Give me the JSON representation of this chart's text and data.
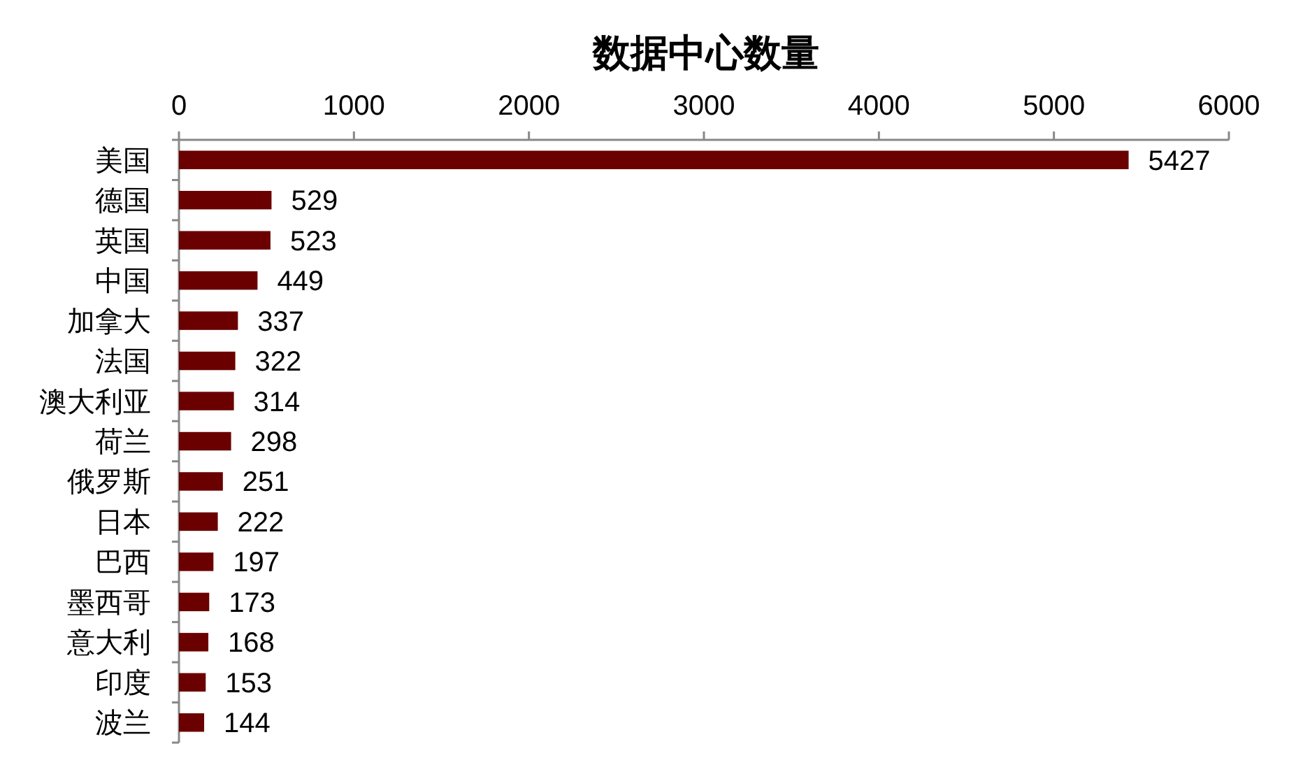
{
  "chart_data": {
    "type": "bar",
    "orientation": "horizontal",
    "title": "数据中心数量",
    "categories": [
      "美国",
      "德国",
      "英国",
      "中国",
      "加拿大",
      "法国",
      "澳大利亚",
      "荷兰",
      "俄罗斯",
      "日本",
      "巴西",
      "墨西哥",
      "意大利",
      "印度",
      "波兰"
    ],
    "values": [
      5427,
      529,
      523,
      449,
      337,
      322,
      314,
      298,
      251,
      222,
      197,
      173,
      168,
      153,
      144
    ],
    "color": "#6b0000",
    "xlim": [
      0,
      6000
    ],
    "xticks": [
      0,
      1000,
      2000,
      3000,
      4000,
      5000,
      6000
    ],
    "data_labels": true
  }
}
